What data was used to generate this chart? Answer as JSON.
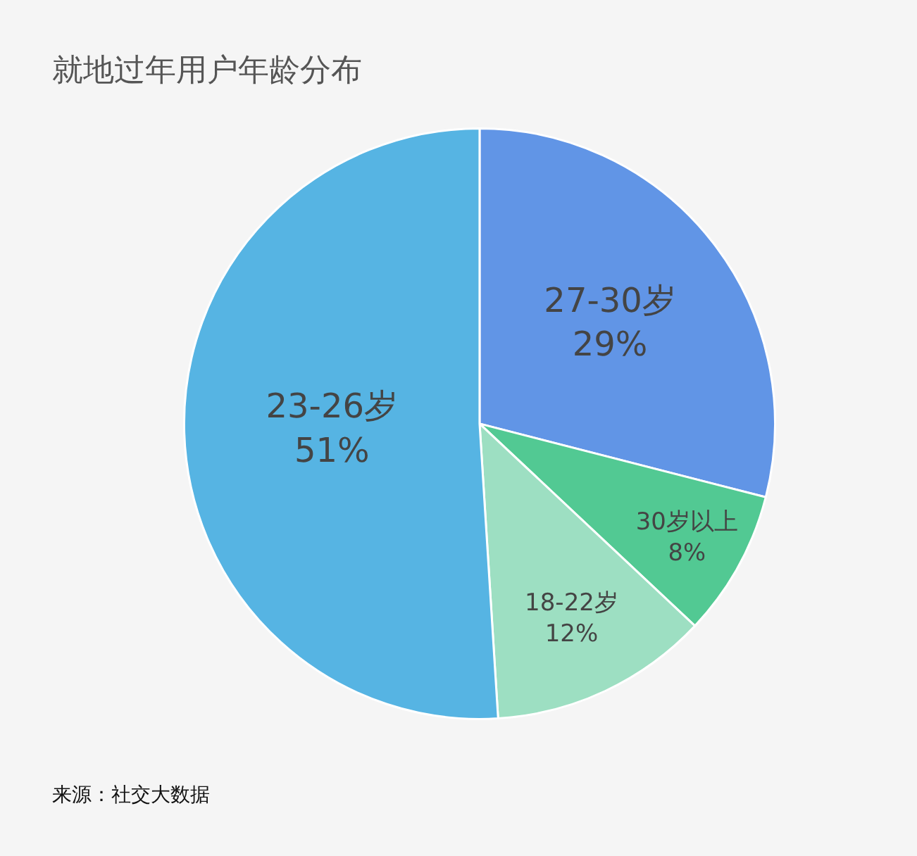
{
  "chart_data": {
    "type": "pie",
    "title": "就地过年用户年龄分布",
    "categories": [
      "27-30岁",
      "30岁以上",
      "18-22岁",
      "23-26岁"
    ],
    "values": [
      29,
      8,
      12,
      51
    ],
    "colors": [
      "#6195e6",
      "#52c993",
      "#9ddfc2",
      "#56b4e3"
    ],
    "value_labels": [
      "29%",
      "8%",
      "12%",
      "51%"
    ],
    "legend": false,
    "annotations": [
      "来源：社交大数据"
    ]
  }
}
